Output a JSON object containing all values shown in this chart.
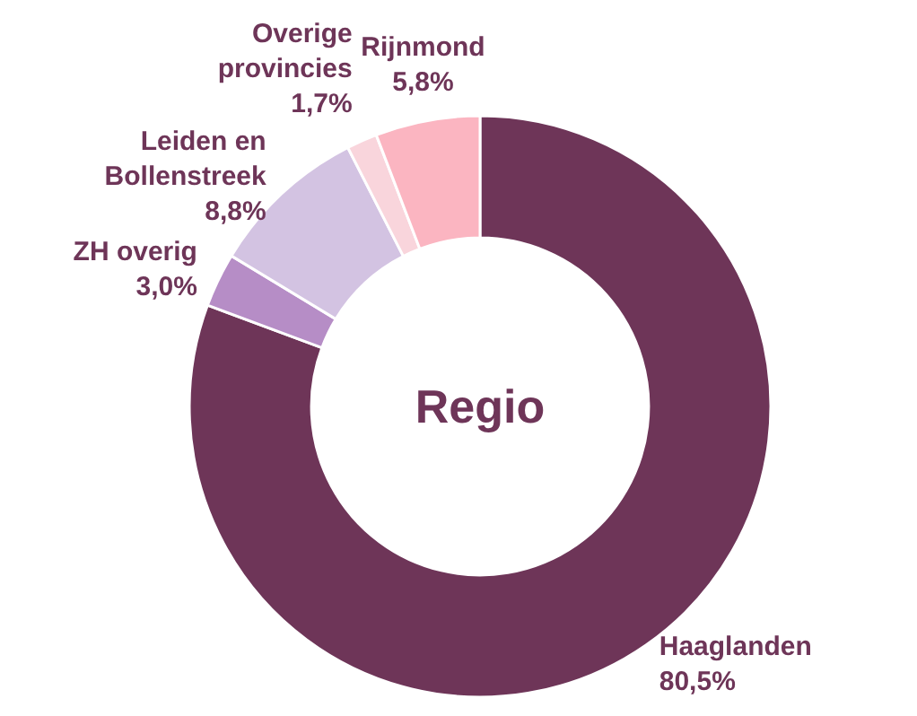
{
  "chart_data": {
    "type": "donut",
    "title": "Regio",
    "categories": [
      "Haaglanden",
      "ZH overig",
      "Leiden en Bollenstreek",
      "Overige provincies",
      "Rijnmond"
    ],
    "values": [
      80.5,
      3.0,
      8.8,
      1.7,
      5.8
    ],
    "colors": [
      "#6e3558",
      "#b68dc6",
      "#d3c3e2",
      "#f9d5dc",
      "#fbb5c1"
    ],
    "value_labels": [
      "80,5%",
      "3,0%",
      "8,8%",
      "1,7%",
      "5,8%"
    ]
  }
}
